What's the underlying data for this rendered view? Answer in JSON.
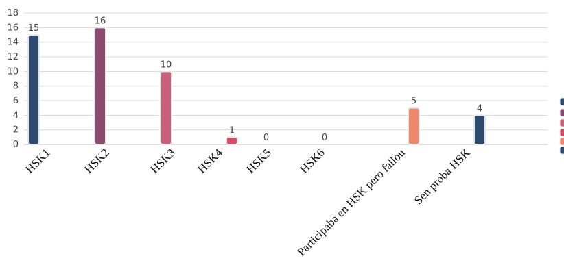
{
  "chart_data": {
    "type": "bar",
    "categories": [
      "HSK1",
      "HSK2",
      "HSK3",
      "HSK4",
      "HSK5",
      "HSK6",
      "Participaba en HSK pero fallou",
      "Sen proba HSK"
    ],
    "values": [
      15,
      16,
      10,
      1,
      0,
      0,
      5,
      4
    ],
    "data_labels": [
      "15",
      "16",
      "10",
      "1",
      "0",
      "0",
      "5",
      "4"
    ],
    "colors": [
      "#2e4a6e",
      "#8b4a6e",
      "#c9607a",
      "#d94a66",
      "#d94a66",
      "#d94a66",
      "#f0876a",
      "#2e4a6e"
    ],
    "ylim": [
      0,
      18
    ],
    "yticks": [
      0,
      2,
      4,
      6,
      8,
      10,
      12,
      14,
      16,
      18
    ],
    "grid": true,
    "title": "",
    "xlabel": "",
    "ylabel": "",
    "legend_position": "right (cropped)",
    "legend_colors": [
      "#2e4a6e",
      "#8b4a6e",
      "#c9607a",
      "#d94a66",
      "#f0876a",
      "#2e4a6e"
    ]
  }
}
